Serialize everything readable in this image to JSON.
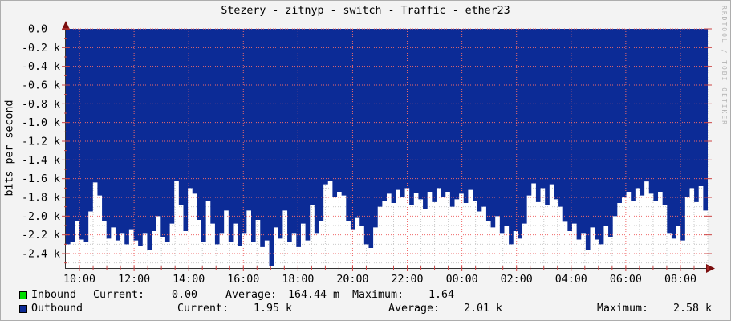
{
  "watermark": "RRDTOOL / TOBI OETIKER",
  "colors": {
    "outbound": "#0c2b96",
    "inbound": "#00dd00",
    "grid_major": "#ef6a6a",
    "grid_minor": "#c9c9c9",
    "axis": "#333333",
    "arrow": "#7a0e0e",
    "tick": "#cc4444",
    "background": "#f3f3f3",
    "plot_background": "#ffffff"
  },
  "legend": {
    "inbound": {
      "name": "Inbound",
      "current_label": "Current:",
      "current": "0.00",
      "average_label": "Average:",
      "average": "164.44 m",
      "maximum_label": "Maximum:",
      "maximum": "1.64"
    },
    "outbound": {
      "name": "Outbound",
      "current_label": "Current:",
      "current": "1.95 k",
      "average_label": "Average:",
      "average": "2.01 k",
      "maximum_label": "Maximum:",
      "maximum": "2.58 k"
    }
  },
  "chart_data": {
    "type": "area",
    "title": "Stezery - zitnyp - switch - Traffic - ether23",
    "ylabel": "bits per second",
    "legend_position": "bottom",
    "grid": "red dotted major, gray dotted minor",
    "x_range_hours": [
      0,
      23.5
    ],
    "start_time": "09:30",
    "step_minutes": 10,
    "ylim_k": [
      -2.553,
      0
    ],
    "y_ticks": [
      {
        "label": "0.0",
        "value_k": 0
      },
      {
        "label": "-0.2 k",
        "value_k": -0.2
      },
      {
        "label": "-0.4 k",
        "value_k": -0.4
      },
      {
        "label": "-0.6 k",
        "value_k": -0.6
      },
      {
        "label": "-0.8 k",
        "value_k": -0.8
      },
      {
        "label": "-1.0 k",
        "value_k": -1.0
      },
      {
        "label": "-1.2 k",
        "value_k": -1.2
      },
      {
        "label": "-1.4 k",
        "value_k": -1.4
      },
      {
        "label": "-1.6 k",
        "value_k": -1.6
      },
      {
        "label": "-1.8 k",
        "value_k": -1.8
      },
      {
        "label": "-2.0 k",
        "value_k": -2.0
      },
      {
        "label": "-2.2 k",
        "value_k": -2.2
      },
      {
        "label": "-2.4 k",
        "value_k": -2.4
      }
    ],
    "x_ticks": [
      {
        "label": "10:00",
        "hour": 0.5
      },
      {
        "label": "12:00",
        "hour": 2.5
      },
      {
        "label": "14:00",
        "hour": 4.5
      },
      {
        "label": "16:00",
        "hour": 6.5
      },
      {
        "label": "18:00",
        "hour": 8.5
      },
      {
        "label": "20:00",
        "hour": 10.5
      },
      {
        "label": "22:00",
        "hour": 12.5
      },
      {
        "label": "00:00",
        "hour": 14.5
      },
      {
        "label": "02:00",
        "hour": 16.5
      },
      {
        "label": "04:00",
        "hour": 18.5
      },
      {
        "label": "06:00",
        "hour": 20.5
      },
      {
        "label": "08:00",
        "hour": 22.5
      }
    ],
    "series": [
      {
        "name": "Inbound",
        "color": "#00dd00",
        "unit": "bits/s",
        "current": "0.00",
        "average": "164.44 m",
        "maximum": "1.64",
        "values_k": [],
        "note": "flat at ~0 bits/s, not visible at this scale"
      },
      {
        "name": "Outbound",
        "color": "#0c2b96",
        "unit": "kbit/s, plotted as negative area below zero",
        "current": "1.95 k",
        "average": "2.01 k",
        "maximum": "2.58 k",
        "values_k": [
          2.3,
          2.28,
          2.05,
          2.25,
          2.28,
          1.95,
          1.64,
          1.78,
          2.05,
          2.24,
          2.12,
          2.26,
          2.18,
          2.3,
          2.14,
          2.26,
          2.32,
          2.18,
          2.36,
          2.16,
          2.0,
          2.22,
          2.28,
          2.08,
          1.62,
          1.88,
          2.16,
          1.7,
          1.76,
          2.04,
          2.28,
          1.84,
          2.08,
          2.3,
          2.18,
          1.94,
          2.28,
          2.08,
          2.32,
          2.18,
          1.94,
          2.28,
          2.04,
          2.33,
          2.26,
          2.53,
          2.12,
          2.24,
          1.94,
          2.28,
          2.18,
          2.33,
          2.08,
          2.26,
          1.88,
          2.18,
          2.05,
          1.66,
          1.62,
          1.8,
          1.74,
          1.78,
          2.05,
          2.14,
          2.02,
          2.1,
          2.3,
          2.34,
          2.12,
          1.9,
          1.84,
          1.76,
          1.86,
          1.72,
          1.8,
          1.7,
          1.88,
          1.75,
          1.82,
          1.92,
          1.74,
          1.85,
          1.7,
          1.8,
          1.74,
          1.9,
          1.82,
          1.76,
          1.86,
          1.72,
          1.84,
          1.95,
          1.9,
          2.05,
          2.12,
          2.0,
          2.18,
          2.1,
          2.3,
          2.16,
          2.24,
          2.08,
          1.78,
          1.65,
          1.85,
          1.7,
          1.88,
          1.66,
          1.82,
          1.9,
          2.06,
          2.16,
          2.08,
          2.25,
          2.18,
          2.36,
          2.12,
          2.25,
          2.3,
          2.1,
          2.22,
          2.0,
          1.86,
          1.8,
          1.74,
          1.84,
          1.7,
          1.78,
          1.63,
          1.76,
          1.84,
          1.74,
          1.88,
          2.18,
          2.24,
          2.1,
          2.26,
          1.8,
          1.7,
          1.85,
          1.68,
          1.94
        ]
      }
    ]
  }
}
